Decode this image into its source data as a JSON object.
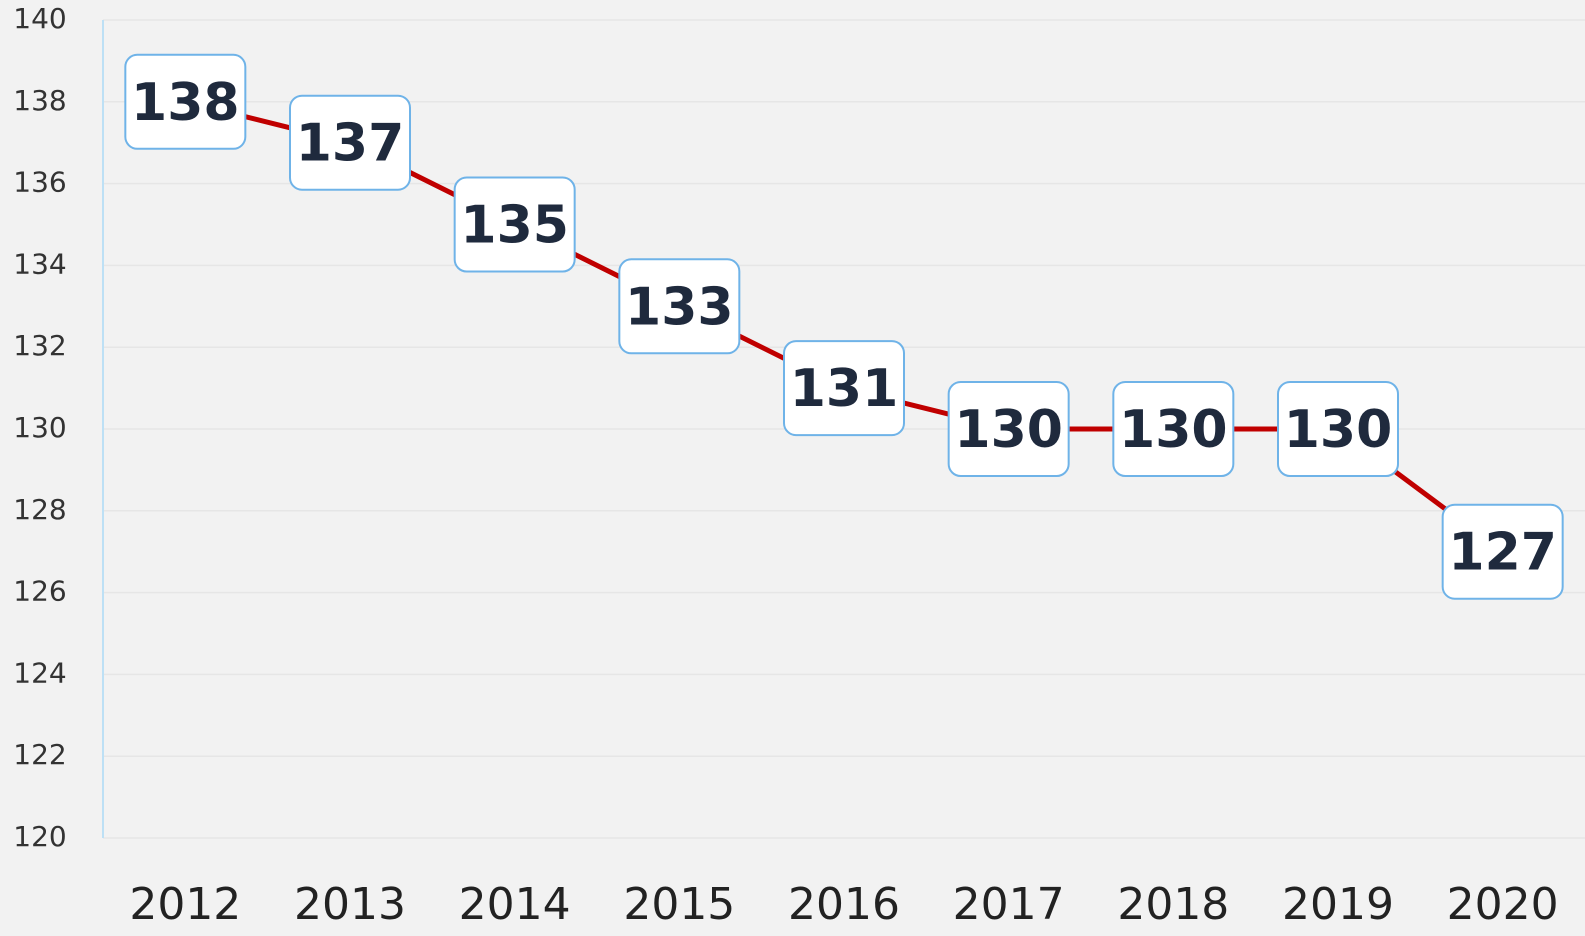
{
  "chart_data": {
    "type": "line",
    "categories": [
      "2012",
      "2013",
      "2014",
      "2015",
      "2016",
      "2017",
      "2018",
      "2019",
      "2020"
    ],
    "values": [
      138,
      137,
      135,
      133,
      131,
      130,
      130,
      130,
      127
    ],
    "color": "#c00000",
    "ylim": [
      120,
      140
    ],
    "yticks": [
      120,
      122,
      124,
      126,
      128,
      130,
      132,
      134,
      136,
      138,
      140
    ],
    "grid": true
  }
}
